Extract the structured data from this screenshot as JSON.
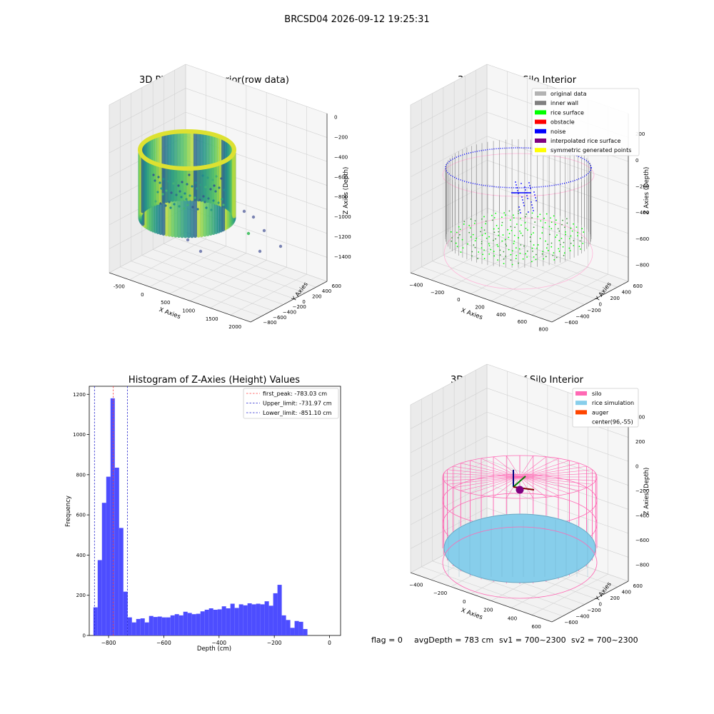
{
  "figure": {
    "suptitle": "BRCSD04 2026-09-12 19:25:31",
    "footer": {
      "flag": "flag = 0",
      "avg": "avgDepth = 783 cm",
      "sv1": "sv1 = 700~2300",
      "sv2": "sv2 = 700~2300"
    }
  },
  "colors": {
    "histogram_bar": "#4d4dff",
    "first_peak_line": "#ff4444",
    "limit_line": "#2222cc",
    "pane": "#f2f2f2",
    "silo": "#ff69b4",
    "rice_simulation": "#87ceeb",
    "auger": "#ff4500",
    "rice_surface": "#00ff00",
    "noise": "#0000ff",
    "inner_wall": "#808080",
    "original_data": "#b3b3b3",
    "obstacle": "#ff0000",
    "interpolated": "#800080",
    "symmetric": "#ffff00"
  },
  "chart_data": [
    {
      "type": "scatter",
      "projection": "3d",
      "title": "3D Plot of Silo Interior(row data)",
      "xlabel": "X Axies",
      "ylabel": "Y Axies",
      "zlabel": "Z Axies (Depth)",
      "xticks": [
        "-500",
        "0",
        "500",
        "1000",
        "1500",
        "2000"
      ],
      "yticks": [
        "600",
        "400",
        "200",
        "0",
        "−200",
        "−400",
        "−600",
        "−800"
      ],
      "zticks": [
        "0",
        "−200",
        "−400",
        "−600",
        "−800",
        "−1000",
        "−1200",
        "−1400"
      ],
      "xlim": [
        -600,
        2100
      ],
      "ylim": [
        -800,
        700
      ],
      "zlim": [
        -1500,
        100
      ],
      "colormap": "viridis (by depth)"
    },
    {
      "type": "scatter",
      "projection": "3d",
      "title": "3D classify of Silo Interior",
      "xlabel": "X Axies",
      "ylabel": "Y Axies",
      "zlabel": "Z Axies (Depth)",
      "xticks": [
        "−400",
        "−200",
        "0",
        "200",
        "400",
        "600",
        "800"
      ],
      "yticks": [
        "600",
        "400",
        "200",
        "0",
        "−200",
        "−400",
        "−600"
      ],
      "zticks": [
        "200",
        "0",
        "−200",
        "−400",
        "−600",
        "−800"
      ],
      "legend": {
        "position": "top-right",
        "items": [
          {
            "label": "original data",
            "color": "#b3b3b3"
          },
          {
            "label": "inner wall",
            "color": "#808080"
          },
          {
            "label": "rice surface",
            "color": "#00ff00"
          },
          {
            "label": "obstacle",
            "color": "#ff0000"
          },
          {
            "label": "noise",
            "color": "#0000ff"
          },
          {
            "label": "interpolated rice surface",
            "color": "#800080"
          },
          {
            "label": "symmetric generated points",
            "color": "#ffff00"
          }
        ]
      }
    },
    {
      "type": "bar",
      "title": "Histogram of Z-Axies (Height) Values",
      "xlabel": "Depth (cm)",
      "ylabel": "Frequency",
      "xlim": [
        -870,
        40
      ],
      "ylim": [
        0,
        1240
      ],
      "xticks": [
        -800,
        -600,
        -400,
        -200,
        0
      ],
      "yticks": [
        0,
        200,
        400,
        600,
        800,
        1000,
        1200
      ],
      "bin_start": -855,
      "bin_width": 15.5,
      "values": [
        140,
        375,
        660,
        790,
        1180,
        835,
        535,
        218,
        90,
        65,
        82,
        85,
        65,
        97,
        92,
        94,
        90,
        90,
        100,
        106,
        100,
        118,
        112,
        106,
        108,
        120,
        128,
        135,
        128,
        130,
        145,
        135,
        158,
        137,
        155,
        150,
        160,
        155,
        158,
        155,
        170,
        148,
        210,
        252,
        100,
        77,
        38,
        72,
        68,
        32
      ],
      "vlines": [
        {
          "x": -783.03,
          "color": "#ff4444",
          "label": "first_peak: -783.03 cm"
        },
        {
          "x": -731.97,
          "color": "#2222cc",
          "label": "Upper_limit: -731.97 cm"
        },
        {
          "x": -851.1,
          "color": "#2222cc",
          "label": "Lower_limit: -851.10 cm"
        }
      ],
      "legend": {
        "position": "top-right"
      },
      "grid": false
    },
    {
      "type": "scatter",
      "projection": "3d",
      "title": "3D simulation of Silo Interior",
      "xlabel": "X Axies",
      "ylabel": "Y Axies",
      "zlabel": "Z Axies (Depth)",
      "xticks": [
        "−400",
        "−200",
        "0",
        "200",
        "400",
        "600"
      ],
      "yticks": [
        "600",
        "400",
        "200",
        "0",
        "−200",
        "−400",
        "−600"
      ],
      "zticks": [
        "400",
        "200",
        "0",
        "−200",
        "−400",
        "−600",
        "−800"
      ],
      "legend": {
        "position": "top-right",
        "items": [
          {
            "label": "silo",
            "color": "#ff69b4"
          },
          {
            "label": "rice simulation",
            "color": "#87ceeb"
          },
          {
            "label": "auger",
            "color": "#ff4500"
          },
          {
            "label": "center(96,-55)",
            "color": ""
          }
        ]
      }
    }
  ]
}
